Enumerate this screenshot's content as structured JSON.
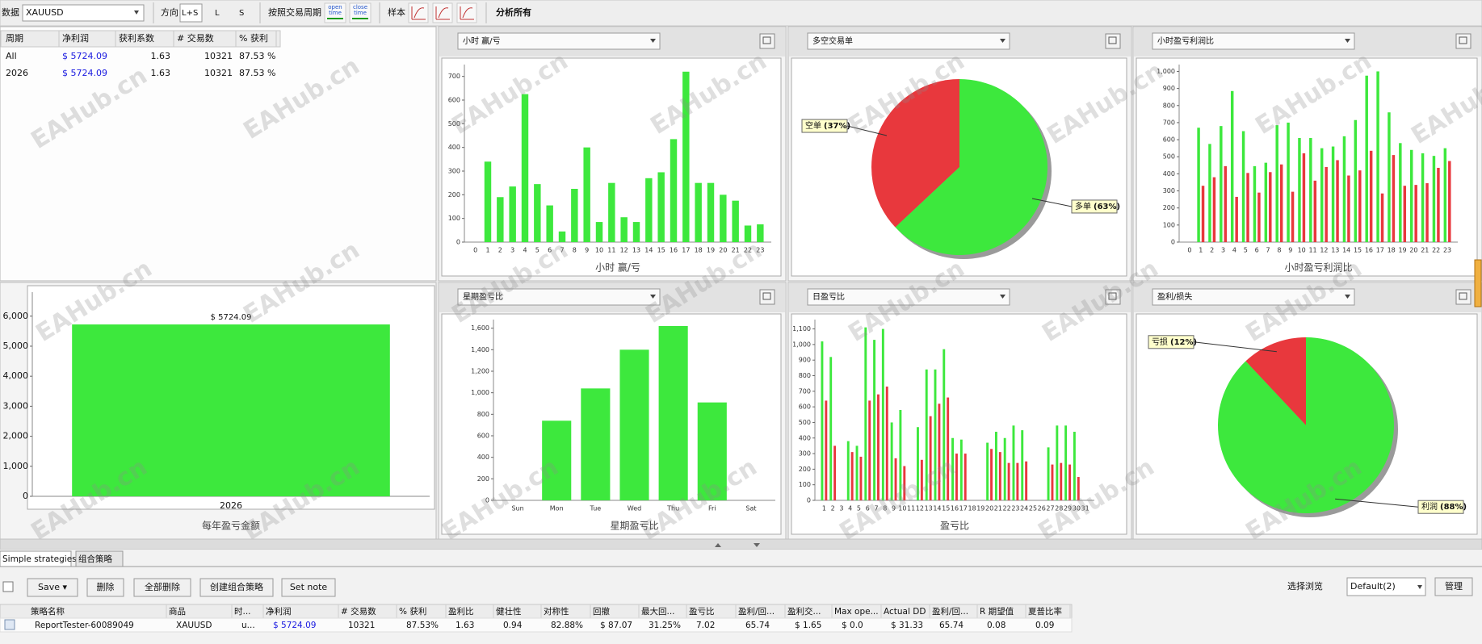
{
  "toolbar": {
    "data_label": "数据",
    "symbol": "XAUUSD",
    "direction_label": "方向",
    "directions": [
      "L+S",
      "L",
      "S"
    ],
    "period_label": "按照交易周期",
    "open_time": [
      "open",
      "time"
    ],
    "close_time": [
      "close",
      "time"
    ],
    "sample_label": "样本",
    "analyze_all": "分析所有"
  },
  "summary_table": {
    "headers": [
      "周期",
      "净利润",
      "获利系数",
      "# 交易数",
      "% 获利"
    ],
    "rows": [
      [
        "All",
        "$ 5724.09",
        "1.63",
        "10321",
        "87.53 %"
      ],
      [
        "2026",
        "$ 5724.09",
        "1.63",
        "10321",
        "87.53 %"
      ]
    ]
  },
  "charts": [
    {
      "type": "bar",
      "selector": "小时 赢/亏",
      "xlabel": "小时 赢/亏",
      "color": "#3de83d",
      "categories": [
        "0",
        "1",
        "2",
        "3",
        "4",
        "5",
        "6",
        "7",
        "8",
        "9",
        "10",
        "11",
        "12",
        "13",
        "14",
        "15",
        "16",
        "17",
        "18",
        "19",
        "20",
        "21",
        "22",
        "23"
      ],
      "values": [
        0,
        340,
        190,
        235,
        625,
        245,
        155,
        45,
        225,
        400,
        85,
        250,
        105,
        85,
        270,
        295,
        435,
        720,
        250,
        250,
        200,
        175,
        70,
        75
      ],
      "ylim": [
        0,
        750
      ],
      "yticks": [
        0,
        100,
        200,
        300,
        400,
        500,
        600,
        700
      ]
    },
    {
      "type": "pie",
      "selector": "多空交易单",
      "categories": [
        "空单",
        "多单"
      ],
      "values": [
        37,
        63
      ],
      "value_labels": [
        "(37%)",
        "(63%)"
      ],
      "colors": [
        "#e8383d",
        "#3de83d"
      ]
    },
    {
      "type": "grouped_bar",
      "selector": "小时盈亏利润比",
      "xlabel": "小时盈亏利润比",
      "categories": [
        "0",
        "1",
        "2",
        "3",
        "4",
        "5",
        "6",
        "7",
        "8",
        "9",
        "10",
        "11",
        "12",
        "13",
        "14",
        "15",
        "16",
        "17",
        "18",
        "19",
        "20",
        "21",
        "22",
        "23"
      ],
      "series": [
        {
          "color": "#3de83d",
          "values": [
            0,
            670,
            575,
            680,
            885,
            650,
            445,
            465,
            685,
            700,
            610,
            610,
            550,
            560,
            620,
            715,
            975,
            1000,
            760,
            580,
            540,
            520,
            505,
            550
          ]
        },
        {
          "color": "#e8383d",
          "values": [
            0,
            330,
            380,
            445,
            265,
            405,
            290,
            410,
            455,
            295,
            520,
            360,
            440,
            480,
            390,
            420,
            535,
            285,
            510,
            330,
            335,
            345,
            435,
            475
          ]
        }
      ],
      "ylim": [
        0,
        1040
      ],
      "yticks": [
        0,
        100,
        200,
        300,
        400,
        500,
        600,
        700,
        800,
        900,
        {
          "value": 1000,
          "label": "1,000"
        }
      ]
    },
    {
      "type": "bar",
      "xlabel": "每年盈亏金额",
      "color": "#3de83d",
      "categories": [
        "2026"
      ],
      "values": [
        5724.09
      ],
      "value_labels": [
        "$ 5724.09"
      ],
      "ylim": [
        0,
        6800
      ],
      "yticks": [
        0,
        {
          "value": 1000,
          "label": "1,000"
        },
        {
          "value": 2000,
          "label": "2,000"
        },
        {
          "value": 3000,
          "label": "3,000"
        },
        {
          "value": 4000,
          "label": "4,000"
        },
        {
          "value": 5000,
          "label": "5,000"
        },
        {
          "value": 6000,
          "label": "6,000"
        }
      ]
    },
    {
      "type": "bar",
      "selector": "星期盈亏比",
      "xlabel": "星期盈亏比",
      "color": "#3de83d",
      "categories": [
        "Sun",
        "Mon",
        "Tue",
        "Wed",
        "Thu",
        "Fri",
        "Sat"
      ],
      "values": [
        0,
        740,
        1040,
        1400,
        1620,
        910,
        0
      ],
      "ylim": [
        0,
        1680
      ],
      "yticks": [
        0,
        200,
        400,
        600,
        800,
        {
          "value": 1000,
          "label": "1,000"
        },
        {
          "value": 1200,
          "label": "1,200"
        },
        {
          "value": 1400,
          "label": "1,400"
        },
        {
          "value": 1600,
          "label": "1,600"
        }
      ]
    },
    {
      "type": "grouped_bar",
      "selector": "日盈亏比",
      "xlabel": "盈亏比",
      "categories": [
        "1",
        "2",
        "3",
        "4",
        "5",
        "6",
        "7",
        "8",
        "9",
        "10",
        "11",
        "12",
        "13",
        "14",
        "15",
        "16",
        "17",
        "18",
        "19",
        "20",
        "21",
        "22",
        "23",
        "24",
        "25",
        "26",
        "27",
        "28",
        "29",
        "30",
        "31"
      ],
      "series": [
        {
          "color": "#3de83d",
          "values": [
            1020,
            920,
            0,
            380,
            350,
            1110,
            1030,
            1100,
            500,
            580,
            0,
            470,
            840,
            840,
            970,
            400,
            390,
            0,
            0,
            370,
            440,
            400,
            480,
            450,
            0,
            0,
            340,
            480,
            480,
            440,
            0
          ]
        },
        {
          "color": "#e8383d",
          "values": [
            640,
            350,
            0,
            310,
            280,
            640,
            680,
            730,
            270,
            220,
            0,
            260,
            540,
            620,
            660,
            300,
            300,
            0,
            0,
            330,
            310,
            240,
            240,
            250,
            0,
            0,
            230,
            240,
            230,
            150,
            0
          ]
        }
      ],
      "ylim": [
        0,
        1160
      ],
      "yticks": [
        0,
        100,
        200,
        300,
        400,
        500,
        600,
        700,
        800,
        900,
        {
          "value": 1000,
          "label": "1,000"
        },
        {
          "value": 1100,
          "label": "1,100"
        }
      ]
    },
    {
      "type": "pie",
      "selector": "盈利/损失",
      "categories": [
        "亏损",
        "利润"
      ],
      "values": [
        12,
        88
      ],
      "value_labels": [
        "(12%)",
        "(88%)"
      ],
      "colors": [
        "#e8383d",
        "#3de83d"
      ]
    }
  ],
  "watermark": "EAHub.cn",
  "tabs": [
    "Simple strategies",
    "组合策略"
  ],
  "buttons": [
    "Save ▾",
    "删除",
    "全部删除",
    "创建组合策略",
    "Set note"
  ],
  "view_label": "选择浏览",
  "view_select": "Default(2)",
  "manage": "管理",
  "strategy_table": {
    "headers": [
      "策略名称",
      "商品",
      "时...",
      "净利润",
      "# 交易数",
      "% 获利",
      "盈利比",
      "健壮性",
      "对称性",
      "回撤",
      "最大回...",
      "盈亏比",
      "盈利/回...",
      "盈利交...",
      "Max ope...",
      "Actual DD",
      "盈利/回...",
      "R 期望值",
      "夏普比率"
    ],
    "rows": [
      [
        "ReportTester-60089049",
        "XAUUSD",
        "u...",
        "$ 5724.09",
        "10321",
        "87.53%",
        "1.63",
        "0.94",
        "82.88%",
        "$ 87.07",
        "31.25%",
        "7.02",
        "65.74",
        "$ 1.65",
        "$ 0.0",
        "$ 31.33",
        "65.74",
        "0.08",
        "0.09"
      ]
    ]
  }
}
